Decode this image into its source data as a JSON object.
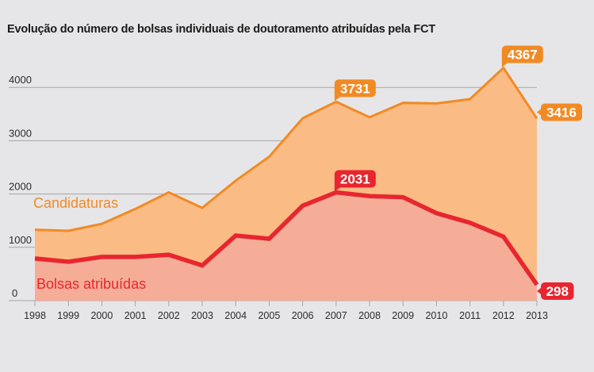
{
  "chart_data": {
    "type": "area",
    "title": "Evolução do número de bolsas individuais de doutoramento atribuídas pela FCT",
    "xlabel": "",
    "ylabel": "",
    "ylim": [
      0,
      4400
    ],
    "yticks": [
      0,
      1000,
      2000,
      3000,
      4000
    ],
    "grid": true,
    "categories": [
      "1998",
      "1999",
      "2000",
      "2001",
      "2002",
      "2003",
      "2004",
      "2005",
      "2006",
      "2007",
      "2008",
      "2009",
      "2010",
      "2011",
      "2012",
      "2013"
    ],
    "series": [
      {
        "name": "Candidaturas",
        "color": "#f28a24",
        "fill": "#fbbb84",
        "values": [
          1330,
          1310,
          1440,
          1720,
          2030,
          1740,
          2250,
          2700,
          3420,
          3731,
          3440,
          3710,
          3700,
          3780,
          4367,
          3416
        ],
        "annotations": [
          {
            "index": 9,
            "label": "3731"
          },
          {
            "index": 14,
            "label": "4367"
          },
          {
            "index": 15,
            "label": "3416"
          }
        ]
      },
      {
        "name": "Bolsas atribuídas",
        "color": "#e8262f",
        "fill": "#f5ad98",
        "values": [
          790,
          730,
          820,
          820,
          860,
          660,
          1220,
          1160,
          1780,
          2031,
          1960,
          1940,
          1640,
          1460,
          1200,
          298
        ],
        "annotations": [
          {
            "index": 9,
            "label": "2031"
          },
          {
            "index": 15,
            "label": "298"
          }
        ]
      }
    ],
    "legend": "inline-left"
  }
}
